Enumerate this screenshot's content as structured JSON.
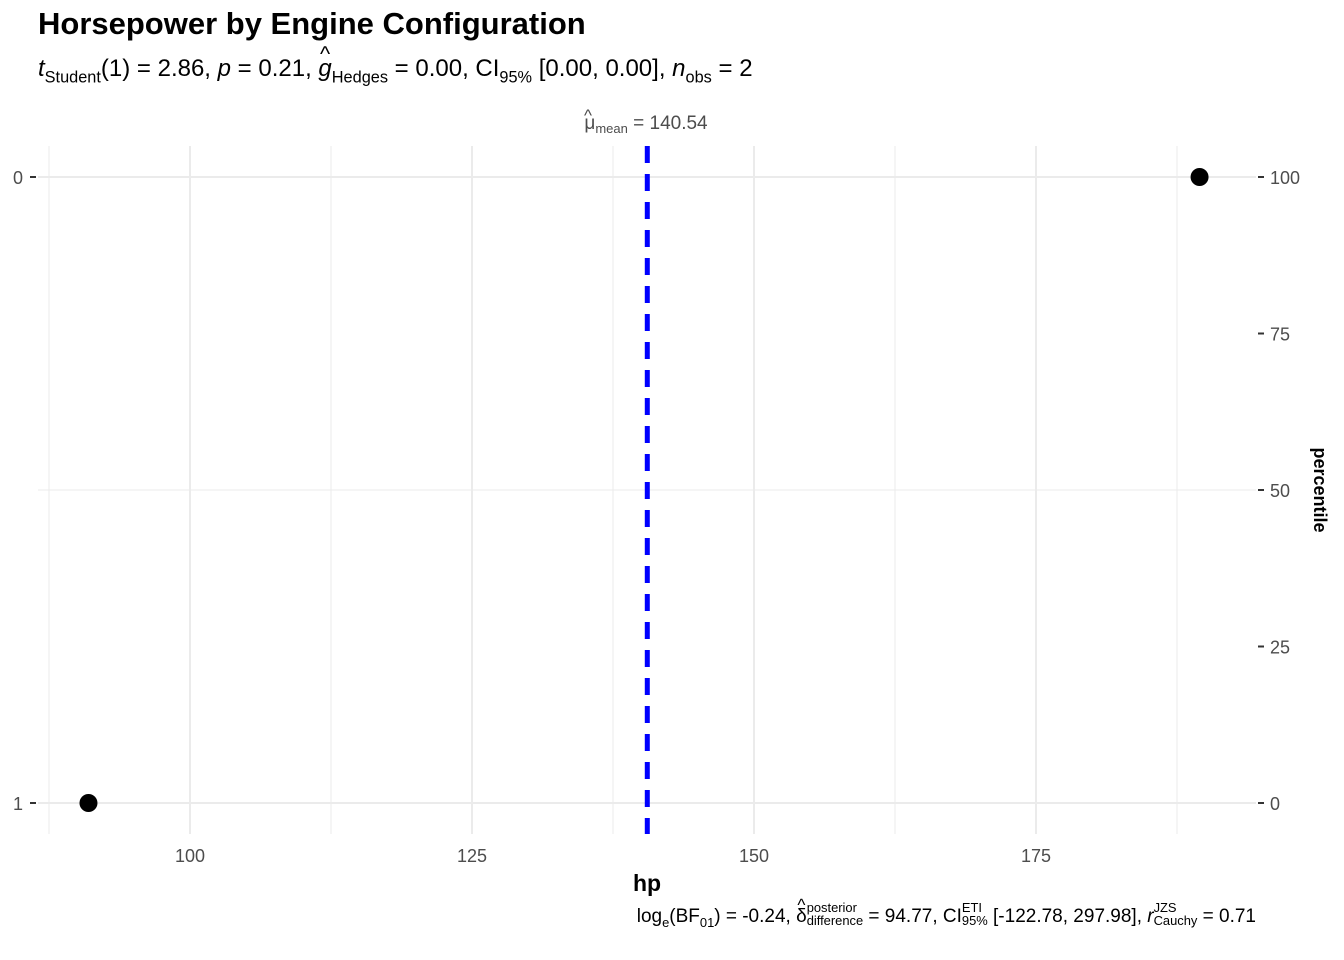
{
  "chart_data": {
    "type": "scatter",
    "title": "Horsepower by Engine Configuration",
    "subtitle": {
      "t_label": "t",
      "t_sub": "Student",
      "t_rest": "(1) = 2.86, ",
      "p_label": "p",
      "p_rest": " = 0.21, ",
      "g_label": "g",
      "g_hat": "^",
      "g_sub": "Hedges",
      "g_rest": " = 0.00, CI",
      "ci_sub": "95%",
      "ci_rest": " [0.00, 0.00], ",
      "n_label": "n",
      "n_sub": "obs",
      "n_rest": " = 2"
    },
    "caption": {
      "log_text": "log",
      "log_sub": "e",
      "bf_text": "(BF",
      "bf_sub": "01",
      "bf_rest": ") = -0.24, ",
      "delta": "δ",
      "delta_hat": "^",
      "delta_sup": "posterior",
      "delta_sub": "difference",
      "delta_rest": " = 94.77, CI",
      "ci_sup": "ETI",
      "ci_sub": "95%",
      "ci_rest": " [-122.78, 297.98], ",
      "r_label": "r",
      "r_sup": "JZS",
      "r_sub": "Cauchy",
      "r_rest": " = 0.71"
    },
    "xlabel": "hp",
    "ylabel_left": "",
    "ylabel_right": "percentile",
    "xlim": [
      85,
      189.5
    ],
    "xticks": [
      100,
      125,
      150,
      175
    ],
    "xticklabels": [
      "100",
      "125",
      "150",
      "175"
    ],
    "left_yticklabels": [
      "0",
      "1"
    ],
    "right_yticks": [
      0,
      25,
      50,
      75,
      100
    ],
    "right_yticklabels": [
      "0",
      "25",
      "50",
      "75",
      "100"
    ],
    "points": [
      {
        "x": 91.0,
        "percentile": 0,
        "group": "1"
      },
      {
        "x": 189.5,
        "percentile": 100,
        "group": "0"
      }
    ],
    "mean_line": {
      "value": 140.54,
      "label_symbol": "μ",
      "label_hat": "^",
      "label_sub": "mean",
      "label_rest": " = 140.54",
      "color": "#0000FF",
      "style": "dashed"
    },
    "grid": true,
    "point_color": "#000000",
    "grid_color": "#EBEBEB"
  }
}
